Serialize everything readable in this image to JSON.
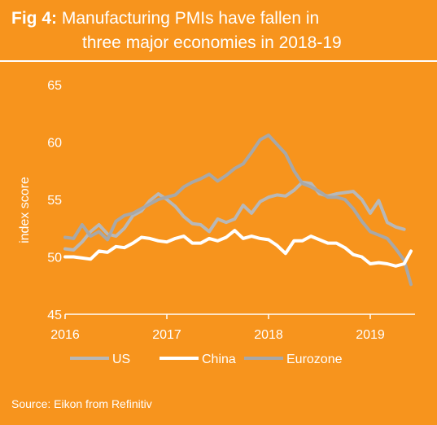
{
  "header": {
    "fig_label": "Fig 4:",
    "title_line1": "Manufacturing PMIs have fallen in",
    "title_line2": "three major economies in 2018-19"
  },
  "source": "Source: Eikon from Refinitiv",
  "colors": {
    "background": "#F7941D",
    "US": "#B8B8B8",
    "China": "#FFFFFF",
    "Eurozone": "#A8A8A8"
  },
  "chart_data": {
    "type": "line",
    "ylabel": "index score",
    "ylim": [
      45,
      65
    ],
    "yticks": [
      45,
      50,
      55,
      60,
      65
    ],
    "xlim": [
      2016,
      2019.4
    ],
    "xticks": [
      2016,
      2017,
      2018,
      2019
    ],
    "xtick_labels": [
      "2016",
      "2017",
      "2018",
      "2019"
    ],
    "legend_position": "bottom",
    "series": [
      {
        "name": "US",
        "x": [
          2016.0,
          2016.083,
          2016.167,
          2016.25,
          2016.333,
          2016.417,
          2016.5,
          2016.583,
          2016.667,
          2016.75,
          2016.833,
          2016.917,
          2017.0,
          2017.083,
          2017.167,
          2017.25,
          2017.333,
          2017.417,
          2017.5,
          2017.583,
          2017.667,
          2017.75,
          2017.833,
          2017.917,
          2018.0,
          2018.083,
          2018.167,
          2018.25,
          2018.333,
          2018.417,
          2018.5,
          2018.583,
          2018.667,
          2018.75,
          2018.833,
          2018.917,
          2019.0,
          2019.083,
          2019.167,
          2019.25,
          2019.333
        ],
        "values": [
          50.7,
          50.6,
          51.3,
          52.2,
          52.8,
          52.0,
          51.8,
          52.5,
          53.6,
          54.0,
          54.9,
          55.5,
          55.0,
          54.4,
          53.5,
          52.9,
          52.8,
          52.2,
          53.3,
          53.0,
          53.3,
          54.5,
          53.8,
          54.8,
          55.2,
          55.4,
          55.3,
          55.8,
          56.5,
          56.4,
          55.5,
          55.3,
          55.5,
          55.6,
          55.7,
          55.0,
          53.8,
          54.9,
          53.0,
          52.6,
          52.4
        ]
      },
      {
        "name": "China",
        "x": [
          2016.0,
          2016.083,
          2016.167,
          2016.25,
          2016.333,
          2016.417,
          2016.5,
          2016.583,
          2016.667,
          2016.75,
          2016.833,
          2016.917,
          2017.0,
          2017.083,
          2017.167,
          2017.25,
          2017.333,
          2017.417,
          2017.5,
          2017.583,
          2017.667,
          2017.75,
          2017.833,
          2017.917,
          2018.0,
          2018.083,
          2018.167,
          2018.25,
          2018.333,
          2018.417,
          2018.5,
          2018.583,
          2018.667,
          2018.75,
          2018.833,
          2018.917,
          2019.0,
          2019.083,
          2019.167,
          2019.25,
          2019.333,
          2019.4
        ],
        "values": [
          50.0,
          50.0,
          49.9,
          49.8,
          50.5,
          50.4,
          50.9,
          50.8,
          51.2,
          51.7,
          51.6,
          51.4,
          51.3,
          51.6,
          51.8,
          51.2,
          51.2,
          51.6,
          51.4,
          51.7,
          52.3,
          51.6,
          51.8,
          51.6,
          51.5,
          51.0,
          50.3,
          51.4,
          51.4,
          51.8,
          51.5,
          51.2,
          51.2,
          50.8,
          50.2,
          50.0,
          49.4,
          49.5,
          49.4,
          49.2,
          49.4,
          50.5
        ]
      },
      {
        "name": "Eurozone",
        "x": [
          2016.0,
          2016.083,
          2016.167,
          2016.25,
          2016.333,
          2016.417,
          2016.5,
          2016.583,
          2016.667,
          2016.75,
          2016.833,
          2016.917,
          2017.0,
          2017.083,
          2017.167,
          2017.25,
          2017.333,
          2017.417,
          2017.5,
          2017.583,
          2017.667,
          2017.75,
          2017.833,
          2017.917,
          2018.0,
          2018.083,
          2018.167,
          2018.25,
          2018.333,
          2018.417,
          2018.5,
          2018.583,
          2018.667,
          2018.75,
          2018.833,
          2018.917,
          2019.0,
          2019.083,
          2019.167,
          2019.25,
          2019.333,
          2019.4
        ],
        "values": [
          51.7,
          51.6,
          52.8,
          51.8,
          52.2,
          51.5,
          53.1,
          53.6,
          53.8,
          54.2,
          54.6,
          55.0,
          55.2,
          55.4,
          56.1,
          56.5,
          56.8,
          57.2,
          56.6,
          57.1,
          57.7,
          58.1,
          59.1,
          60.2,
          60.6,
          59.8,
          59.0,
          57.5,
          56.4,
          56.1,
          55.7,
          55.2,
          55.2,
          55.0,
          54.2,
          53.1,
          52.2,
          51.9,
          51.6,
          50.7,
          49.7,
          47.6
        ]
      }
    ]
  }
}
